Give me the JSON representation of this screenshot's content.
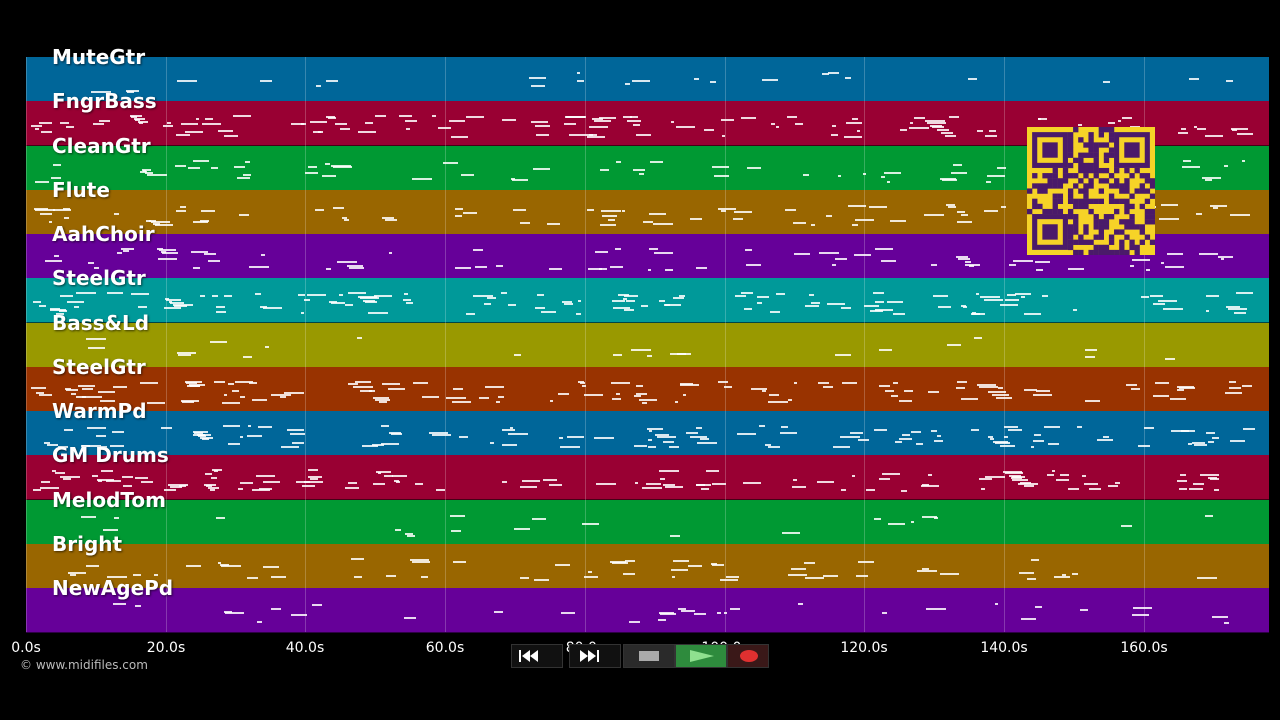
{
  "copyright": "© www.midifiles.com",
  "time_axis": {
    "ticks": [
      "0.0s",
      "20.0s",
      "40.0s",
      "60.0s",
      "80.0s",
      "100.0s",
      "120.0s",
      "140.0s",
      "160.0s"
    ],
    "max_seconds": 178
  },
  "tracks": [
    {
      "name": "MuteGtr",
      "color": "#006699",
      "density": 0.12
    },
    {
      "name": "FngrBass",
      "color": "#990033",
      "density": 0.95
    },
    {
      "name": "CleanGtr",
      "color": "#009933",
      "density": 0.45
    },
    {
      "name": "Flute",
      "color": "#996600",
      "density": 0.6
    },
    {
      "name": "AahChoir",
      "color": "#660099",
      "density": 0.55
    },
    {
      "name": "SteelGtr",
      "color": "#009999",
      "density": 1.0
    },
    {
      "name": "Bass&Ld",
      "color": "#999900",
      "density": 0.1
    },
    {
      "name": "SteelGtr",
      "color": "#993300",
      "density": 0.95
    },
    {
      "name": "WarmPd",
      "color": "#006699",
      "density": 0.9
    },
    {
      "name": "GM Drums",
      "color": "#990033",
      "density": 0.95
    },
    {
      "name": "MelodTom",
      "color": "#009933",
      "density": 0.1
    },
    {
      "name": "Bright",
      "color": "#996600",
      "density": 0.4
    },
    {
      "name": "NewAgePd",
      "color": "#660099",
      "density": 0.2
    }
  ],
  "transport": {
    "rewind_icon": "rewind-icon",
    "forward_icon": "fast-forward-icon",
    "stop_icon": "stop-icon",
    "play_icon": "play-icon",
    "record_icon": "record-icon",
    "play_color": "#2e8b3d",
    "record_color": "#e03030"
  },
  "qr_color": "#f6d327",
  "qr_dark": "#4a1a6a"
}
